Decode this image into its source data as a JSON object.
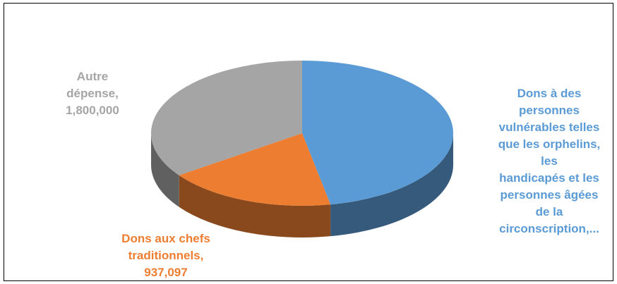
{
  "chart_data": {
    "type": "pie",
    "title": "",
    "slices": [
      {
        "label": "Dons à des personnes vulnérables telles que les orphelins, les handicapés et les personnes âgées de la circonscription,...",
        "value": null,
        "share": 0.47,
        "color": "#5b9bd5"
      },
      {
        "label": "Dons aux chefs traditionnels,",
        "value": 937097,
        "value_text": "937,097",
        "color": "#ed7d31"
      },
      {
        "label": "Autre dépense,",
        "value": 1800000,
        "value_text": "1,800,000",
        "color": "#a5a5a5"
      }
    ],
    "style": "3d",
    "legend": "none"
  },
  "labels": {
    "blue": "Dons à des\npersonnes\nvulnérables telles\nque les orphelins,\nles\nhandicapés et les\npersonnes âgées\nde la\ncirconscription,...",
    "orange": "Dons aux chefs\ntraditionnels,\n937,097",
    "gray": "Autre\ndépense,\n1,800,000"
  }
}
